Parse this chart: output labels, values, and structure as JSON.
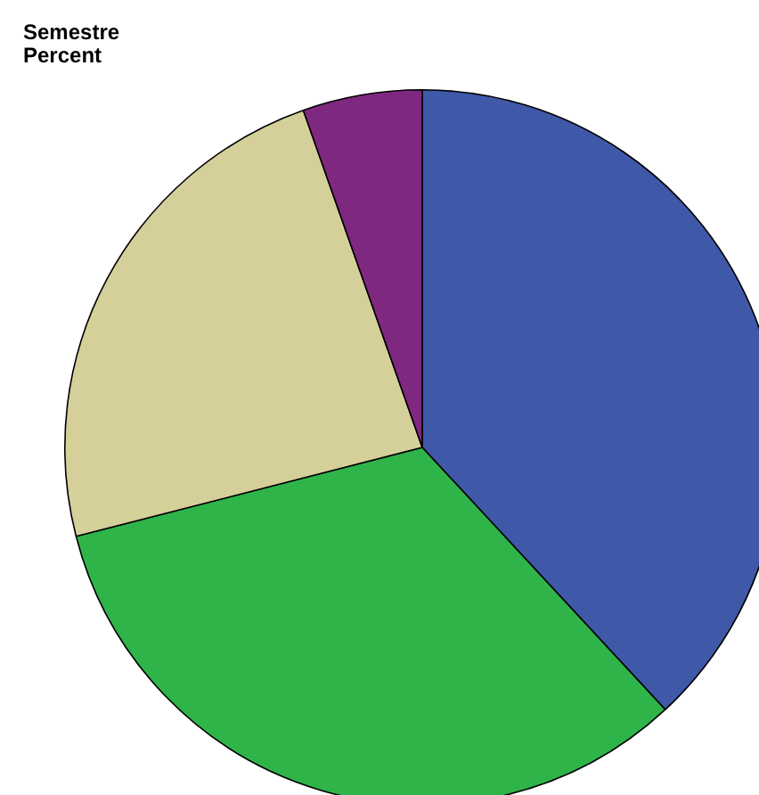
{
  "chart_data": {
    "type": "pie",
    "title": "Semestre",
    "subtitle": "Percent",
    "categories": [
      null,
      null,
      null,
      null
    ],
    "values": [
      38.1,
      32.9,
      23.6,
      5.4
    ],
    "colors": [
      "#3f58a8",
      "#2fb44a",
      "#d5cf9a",
      "#7f2880"
    ],
    "legend": false
  }
}
